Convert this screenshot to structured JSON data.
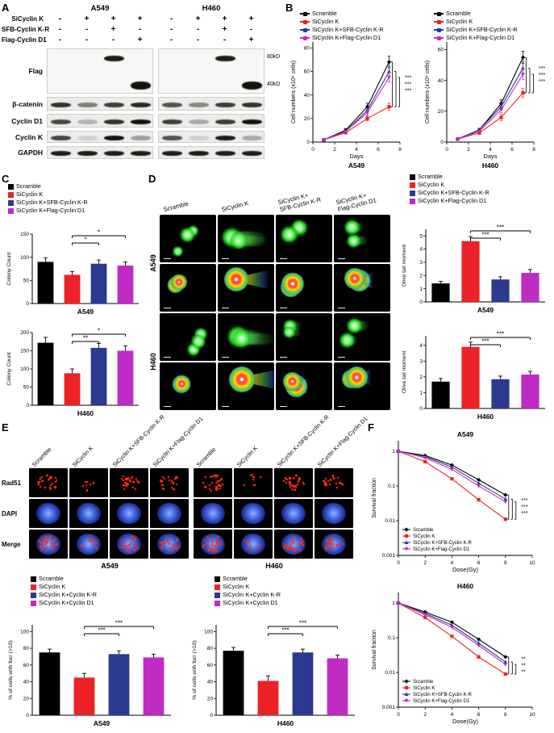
{
  "panels": {
    "a": "A",
    "b": "B",
    "c": "C",
    "d": "D",
    "e": "E",
    "f": "F"
  },
  "colors": {
    "scramble": "#000000",
    "si_cyclin_k": "#EC2227",
    "si_k_sfb_kr": "#2B3990",
    "si_k_flag_d1": "#C02BC4"
  },
  "legends": {
    "b": {
      "marker": "line",
      "items": [
        {
          "label": "Scramble",
          "color": "#000000"
        },
        {
          "label": "SiCyclin K",
          "color": "#EC2227"
        },
        {
          "label": "SiCyclin K+SFB-Cyclin K-R",
          "color": "#2B3990"
        },
        {
          "label": "SiCyclin K+Flag-Cyclin D1",
          "color": "#C02BC4"
        }
      ]
    },
    "c": {
      "marker": "square",
      "items": [
        {
          "label": "Scramble",
          "color": "#000000"
        },
        {
          "label": "SiCyclin K",
          "color": "#EC2227"
        },
        {
          "label": "SiCyclin K+SFB-Cyclin K-R",
          "color": "#2B3990"
        },
        {
          "label": "SiCyclin K+Flag-Cyclin D1",
          "color": "#C02BC4"
        }
      ]
    },
    "d": {
      "marker": "square",
      "items": [
        {
          "label": "Scramble",
          "color": "#000000"
        },
        {
          "label": "SiCyclin K",
          "color": "#EC2227"
        },
        {
          "label": "SiCyclin K+SFB-Cyclin K-R",
          "color": "#2B3990"
        },
        {
          "label": "SiCyclin K+Flag-Cyclin D1",
          "color": "#C02BC4"
        }
      ]
    },
    "e": {
      "marker": "square",
      "items": [
        {
          "label": "Scramble",
          "color": "#000000"
        },
        {
          "label": "SiCyclin K",
          "color": "#EC2227"
        },
        {
          "label": "SiCyclin K+Cyclin K-R",
          "color": "#2B3990"
        },
        {
          "label": "SiCyclin K+Cyclin D1",
          "color": "#C02BC4"
        }
      ]
    }
  },
  "panelA": {
    "cell_lines": [
      "A549",
      "H460"
    ],
    "conditions": [
      {
        "label": "SiCyclin K",
        "values": [
          "-",
          "+",
          "+",
          "+"
        ]
      },
      {
        "label": "SFB-Cyclin K-R",
        "values": [
          "-",
          "-",
          "+",
          "-"
        ]
      },
      {
        "label": "Flag-Cyclin D1",
        "values": [
          "-",
          "-",
          "-",
          "+"
        ]
      }
    ],
    "blots": [
      {
        "label": "Flag",
        "h": 56,
        "white": true,
        "markers": [
          "80kD",
          "40kD"
        ],
        "marker_y": [
          0.2,
          0.8
        ],
        "groups": [
          [
            {
              "l": 2,
              "y": 0.2,
              "i": 0.95,
              "h": 7
            },
            {
              "l": 3,
              "y": 0.8,
              "i": 1,
              "h": 10
            }
          ],
          [
            {
              "l": 2,
              "y": 0.2,
              "i": 0.95,
              "h": 7
            },
            {
              "l": 3,
              "y": 0.8,
              "i": 1,
              "h": 10
            }
          ]
        ]
      },
      {
        "label": "β-catenin",
        "h": 17,
        "groups": [
          [
            {
              "l": 0,
              "y": 0.5,
              "i": 0.85
            },
            {
              "l": 1,
              "y": 0.5,
              "i": 0.5
            },
            {
              "l": 2,
              "y": 0.5,
              "i": 0.8
            },
            {
              "l": 3,
              "y": 0.5,
              "i": 0.9
            }
          ],
          [
            {
              "l": 0,
              "y": 0.5,
              "i": 0.7
            },
            {
              "l": 1,
              "y": 0.5,
              "i": 0.45
            },
            {
              "l": 2,
              "y": 0.5,
              "i": 0.8
            },
            {
              "l": 3,
              "y": 0.5,
              "i": 0.85
            }
          ]
        ]
      },
      {
        "label": "Cyclin D1",
        "h": 17,
        "groups": [
          [
            {
              "l": 0,
              "y": 0.5,
              "i": 0.75
            },
            {
              "l": 1,
              "y": 0.5,
              "i": 0.25
            },
            {
              "l": 2,
              "y": 0.5,
              "i": 0.85
            },
            {
              "l": 3,
              "y": 0.5,
              "i": 1
            }
          ],
          [
            {
              "l": 0,
              "y": 0.5,
              "i": 0.8
            },
            {
              "l": 1,
              "y": 0.5,
              "i": 0.3
            },
            {
              "l": 2,
              "y": 0.5,
              "i": 0.8
            },
            {
              "l": 3,
              "y": 0.5,
              "i": 1
            }
          ]
        ]
      },
      {
        "label": "Cyclin K",
        "h": 15,
        "groups": [
          [
            {
              "l": 0,
              "y": 0.5,
              "i": 0.75
            },
            {
              "l": 1,
              "y": 0.5,
              "i": 0.12
            },
            {
              "l": 2,
              "y": 0.5,
              "i": 1
            },
            {
              "l": 3,
              "y": 0.5,
              "i": 0.35
            }
          ],
          [
            {
              "l": 0,
              "y": 0.5,
              "i": 0.7
            },
            {
              "l": 1,
              "y": 0.5,
              "i": 0.12
            },
            {
              "l": 2,
              "y": 0.5,
              "i": 0.95
            },
            {
              "l": 3,
              "y": 0.5,
              "i": 0.3
            }
          ]
        ]
      },
      {
        "label": "GAPDH",
        "h": 16,
        "groups": [
          [
            {
              "l": 0,
              "y": 0.5,
              "i": 0.95
            },
            {
              "l": 1,
              "y": 0.5,
              "i": 0.95
            },
            {
              "l": 2,
              "y": 0.5,
              "i": 0.95
            },
            {
              "l": 3,
              "y": 0.5,
              "i": 0.95
            }
          ],
          [
            {
              "l": 0,
              "y": 0.5,
              "i": 0.95
            },
            {
              "l": 1,
              "y": 0.5,
              "i": 0.95
            },
            {
              "l": 2,
              "y": 0.5,
              "i": 0.95
            },
            {
              "l": 3,
              "y": 0.5,
              "i": 0.95
            }
          ]
        ]
      }
    ]
  },
  "panelD": {
    "columns": [
      [
        "Scramble"
      ],
      [
        "SiCyclin K"
      ],
      [
        "SiCyclin K+",
        "SFB-Cyclin K-R"
      ],
      [
        "SiCyclin K+",
        "Flag-Cyclin D1"
      ]
    ],
    "rows": [
      {
        "line": "A549",
        "type": "green",
        "first": true
      },
      {
        "line": "A549",
        "type": "rainbow"
      },
      {
        "line": "H460",
        "type": "green",
        "first": true
      },
      {
        "line": "H460",
        "type": "rainbow"
      }
    ],
    "tails": [
      0.12,
      0.85,
      0.3,
      0.35
    ]
  },
  "panelE": {
    "row_labels": [
      "Rad51",
      "DAPI",
      "Merge"
    ],
    "columns": [
      "Scramble",
      "SiCyclin K",
      "SiCyclin K+SFB-Cyclin K-R",
      "SiCyclin K+Flag-Cyclin D1",
      "Scramble",
      "SiCyclin K",
      "SiCyclin K+SFB-Cyclin K-R",
      "SiCyclin K+Flag-Cyclin D1"
    ],
    "foci": [
      25,
      8,
      23,
      20,
      26,
      7,
      24,
      19
    ],
    "group_labels": [
      "A549",
      "H460"
    ]
  },
  "charts": {
    "b_a549": {
      "type": "line",
      "x": [
        1,
        3,
        5,
        7
      ],
      "xlim": [
        0,
        8
      ],
      "xticks": [
        0,
        2,
        4,
        6,
        8
      ],
      "ylim": [
        0,
        85
      ],
      "yticks": [
        0,
        20,
        40,
        60,
        80
      ],
      "xlabel": "Days",
      "ylabel": "Cell numbers (x10⁴ cells)",
      "title_below": "A549",
      "series": [
        {
          "name": "Scramble",
          "color": "#000000",
          "values": [
            2,
            10,
            30,
            68
          ],
          "err": [
            0.5,
            1.5,
            3,
            5
          ]
        },
        {
          "name": "SiCyclin K",
          "color": "#EC2227",
          "values": [
            2,
            8,
            20,
            30
          ],
          "err": [
            0.5,
            1,
            2,
            3
          ]
        },
        {
          "name": "SiCyclin K+SFB-Cyclin K-R",
          "color": "#2B3990",
          "values": [
            2,
            9,
            27,
            60
          ],
          "err": [
            0.5,
            1,
            2.5,
            4
          ]
        },
        {
          "name": "SiCyclin K+Flag-Cyclin D1",
          "color": "#C02BC4",
          "values": [
            2,
            9,
            25,
            55
          ],
          "err": [
            0.5,
            1,
            2.5,
            4
          ]
        }
      ],
      "sig": [
        "***",
        "***",
        "***"
      ]
    },
    "b_h460": {
      "type": "line",
      "x": [
        1,
        3,
        5,
        7
      ],
      "xlim": [
        0,
        8
      ],
      "xticks": [
        0,
        2,
        4,
        6,
        8
      ],
      "ylim": [
        0,
        65
      ],
      "yticks": [
        0,
        20,
        40,
        60
      ],
      "xlabel": "Days",
      "ylabel": "Cell numbers (x10⁴ cells)",
      "title_below": "H460",
      "series": [
        {
          "name": "Scramble",
          "color": "#000000",
          "values": [
            2,
            8,
            25,
            55
          ],
          "err": [
            0.5,
            1,
            2.5,
            4
          ]
        },
        {
          "name": "SiCyclin K",
          "color": "#EC2227",
          "values": [
            2,
            6,
            16,
            32
          ],
          "err": [
            0.5,
            1,
            2,
            3
          ]
        },
        {
          "name": "SiCyclin K+SFB-Cyclin K-R",
          "color": "#2B3990",
          "values": [
            2,
            8,
            23,
            48
          ],
          "err": [
            0.5,
            1,
            2,
            4
          ]
        },
        {
          "name": "SiCyclin K+Flag-Cyclin D1",
          "color": "#C02BC4",
          "values": [
            2,
            7,
            21,
            44
          ],
          "err": [
            0.5,
            1,
            2,
            3.5
          ]
        }
      ],
      "sig": [
        "***",
        "***",
        "***"
      ]
    },
    "c_a549": {
      "type": "bar",
      "values": [
        90,
        62,
        86,
        82
      ],
      "errors": [
        9,
        7,
        8,
        8
      ],
      "colors": [
        "#000000",
        "#EC2227",
        "#2B3990",
        "#C02BC4"
      ],
      "ylim": [
        0,
        150
      ],
      "yticks": [
        0,
        50,
        100,
        150
      ],
      "ylabel": "Colony Count",
      "title_below": "A549",
      "brackets": [
        {
          "from": 1,
          "to": 2,
          "label": "*",
          "level": 0
        },
        {
          "from": 1,
          "to": 3,
          "label": "*",
          "level": 1
        }
      ]
    },
    "c_h460": {
      "type": "bar",
      "values": [
        172,
        88,
        158,
        150
      ],
      "errors": [
        15,
        12,
        12,
        13
      ],
      "colors": [
        "#000000",
        "#EC2227",
        "#2B3990",
        "#C02BC4"
      ],
      "ylim": [
        0,
        200
      ],
      "yticks": [
        0,
        50,
        100,
        150,
        200
      ],
      "ylabel": "Colony Count",
      "title_below": "H460",
      "brackets": [
        {
          "from": 1,
          "to": 2,
          "label": "**",
          "level": 0
        },
        {
          "from": 1,
          "to": 3,
          "label": "*",
          "level": 1
        }
      ]
    },
    "d_a549": {
      "type": "bar",
      "values": [
        1.4,
        4.6,
        1.7,
        2.2
      ],
      "errors": [
        0.15,
        0.35,
        0.2,
        0.25
      ],
      "colors": [
        "#000000",
        "#EC2227",
        "#2B3990",
        "#C02BC4"
      ],
      "ylim": [
        0,
        5.5
      ],
      "yticks": [
        0,
        1,
        2,
        3,
        4,
        5
      ],
      "ylabel": "Olive tail moment",
      "title_below": "A549",
      "brackets": [
        {
          "from": 1,
          "to": 2,
          "label": "***",
          "level": 0
        },
        {
          "from": 1,
          "to": 3,
          "label": "***",
          "level": 1
        }
      ]
    },
    "d_h460": {
      "type": "bar",
      "values": [
        1.7,
        3.9,
        1.85,
        2.15
      ],
      "errors": [
        0.2,
        0.3,
        0.2,
        0.2
      ],
      "colors": [
        "#000000",
        "#EC2227",
        "#2B3990",
        "#C02BC4"
      ],
      "ylim": [
        0,
        4.6
      ],
      "yticks": [
        0,
        1,
        2,
        3,
        4
      ],
      "ylabel": "Olive tail moment",
      "title_below": "H460",
      "brackets": [
        {
          "from": 1,
          "to": 2,
          "label": "***",
          "level": 0
        },
        {
          "from": 1,
          "to": 3,
          "label": "***",
          "level": 1
        }
      ]
    },
    "e_a549": {
      "type": "bar",
      "values": [
        75,
        45,
        73,
        69
      ],
      "errors": [
        4,
        5,
        4,
        4
      ],
      "colors": [
        "#000000",
        "#EC2227",
        "#2B3990",
        "#C02BC4"
      ],
      "ylim": [
        0,
        108
      ],
      "yticks": [
        0,
        20,
        40,
        60,
        80,
        100
      ],
      "ylabel": "% of cells with foci (>10)",
      "title_below": "A549",
      "brackets": [
        {
          "from": 1,
          "to": 2,
          "label": "***",
          "level": 0
        },
        {
          "from": 1,
          "to": 3,
          "label": "***",
          "level": 1
        }
      ]
    },
    "e_h460": {
      "type": "bar",
      "values": [
        77,
        41,
        75,
        68
      ],
      "errors": [
        4,
        6,
        4,
        4
      ],
      "colors": [
        "#000000",
        "#EC2227",
        "#2B3990",
        "#C02BC4"
      ],
      "ylim": [
        0,
        108
      ],
      "yticks": [
        0,
        20,
        40,
        60,
        80,
        100
      ],
      "ylabel": "% of cells with foci (>10)",
      "title_below": "H460",
      "brackets": [
        {
          "from": 1,
          "to": 2,
          "label": "***",
          "level": 0
        },
        {
          "from": 1,
          "to": 3,
          "label": "***",
          "level": 1
        }
      ]
    },
    "f_a549": {
      "type": "line",
      "log": true,
      "x": [
        0,
        2,
        4,
        6,
        8
      ],
      "xlim": [
        0,
        10
      ],
      "xticks": [
        0,
        2,
        4,
        6,
        8,
        10
      ],
      "ylim": [
        0.001,
        2
      ],
      "yticks": [
        1,
        0.1,
        0.01,
        0.001
      ],
      "xlabel": "Dose(Gy)",
      "ylabel": "Survival fraction",
      "title_above": "A549",
      "legend_inside": true,
      "series": [
        {
          "name": "Scramble",
          "color": "#000000",
          "values": [
            1,
            0.75,
            0.4,
            0.15,
            0.055
          ]
        },
        {
          "name": "SiCyclin K",
          "color": "#EC2227",
          "values": [
            1,
            0.5,
            0.16,
            0.04,
            0.011
          ]
        },
        {
          "name": "SiCyclin K+SFB-Cyclin K-R",
          "color": "#2B3990",
          "values": [
            1,
            0.7,
            0.35,
            0.12,
            0.042
          ]
        },
        {
          "name": "SiCyclin K+Flag-Cyclin D1",
          "color": "#C02BC4",
          "values": [
            1,
            0.65,
            0.3,
            0.1,
            0.035
          ]
        }
      ],
      "sig": [
        "***",
        "***",
        "***"
      ]
    },
    "f_h460": {
      "type": "line",
      "log": true,
      "x": [
        0,
        2,
        4,
        6,
        8
      ],
      "xlim": [
        0,
        10
      ],
      "xticks": [
        0,
        2,
        4,
        6,
        8,
        10
      ],
      "ylim": [
        0.001,
        2
      ],
      "yticks": [
        1,
        0.1,
        0.01,
        0.001
      ],
      "xlabel": "Dose(Gy)",
      "ylabel": "Survival fraction",
      "title_above": "H460",
      "legend_inside": true,
      "series": [
        {
          "name": "Scramble",
          "color": "#000000",
          "values": [
            1,
            0.55,
            0.28,
            0.09,
            0.028
          ]
        },
        {
          "name": "SiCyclin K",
          "color": "#EC2227",
          "values": [
            1,
            0.38,
            0.11,
            0.028,
            0.009
          ]
        },
        {
          "name": "SiCyclin K+SFB-Cyclin K-R",
          "color": "#2B3990",
          "values": [
            1,
            0.5,
            0.23,
            0.07,
            0.02
          ]
        },
        {
          "name": "SiCyclin K+Flag-Cyclin D1",
          "color": "#C02BC4",
          "values": [
            1,
            0.46,
            0.2,
            0.06,
            0.017
          ]
        }
      ],
      "sig": [
        "**",
        "**",
        "**"
      ]
    }
  }
}
